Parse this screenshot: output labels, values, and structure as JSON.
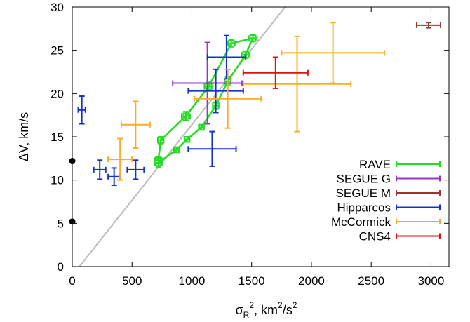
{
  "chart_data": {
    "type": "scatter",
    "xlabel_parts": [
      "σ",
      "R",
      "2",
      ", km",
      "2",
      "/s",
      "2"
    ],
    "ylabel": "ΔV, km/s",
    "xlim": [
      0,
      3150
    ],
    "ylim": [
      0,
      30
    ],
    "xticks": [
      0,
      500,
      1000,
      1500,
      2000,
      2500,
      3000
    ],
    "yticks": [
      0,
      5,
      10,
      15,
      20,
      25,
      30
    ],
    "grid": false,
    "legend_position": "bottom-right",
    "reference_line": {
      "x1": 60,
      "y1": 0,
      "x2": 1780,
      "y2": 30,
      "color": "#bbbbbb"
    },
    "black_points": [
      {
        "x": 0,
        "y": 12.2
      },
      {
        "x": 0,
        "y": 5.2
      }
    ],
    "series": [
      {
        "name": "RAVE",
        "color": "#22dd22",
        "connected": true,
        "lines": [
          [
            [
              720,
              12.0
            ],
            [
              870,
              13.5
            ],
            [
              960,
              14.7
            ],
            [
              1080,
              16.1
            ],
            [
              1200,
              18.6
            ],
            [
              1300,
              21.4
            ],
            [
              1450,
              24.5
            ],
            [
              1510,
              26.4
            ],
            [
              1330,
              25.8
            ],
            [
              1140,
              20.8
            ],
            [
              950,
              17.4
            ],
            [
              740,
              14.6
            ],
            [
              720,
              12.3
            ]
          ]
        ],
        "points": [
          {
            "x": 720,
            "y": 12.0,
            "xerr": 30,
            "yerr": 0.5
          },
          {
            "x": 870,
            "y": 13.5,
            "xerr": 20,
            "yerr": 0.3
          },
          {
            "x": 960,
            "y": 14.7,
            "xerr": 20,
            "yerr": 0.3
          },
          {
            "x": 1080,
            "y": 16.1,
            "xerr": 20,
            "yerr": 0.3
          },
          {
            "x": 1200,
            "y": 18.6,
            "xerr": 25,
            "yerr": 0.4
          },
          {
            "x": 1300,
            "y": 21.4,
            "xerr": 25,
            "yerr": 0.5
          },
          {
            "x": 1450,
            "y": 24.5,
            "xerr": 35,
            "yerr": 0.4
          },
          {
            "x": 1510,
            "y": 26.4,
            "xerr": 35,
            "yerr": 0.4
          },
          {
            "x": 1330,
            "y": 25.8,
            "xerr": 30,
            "yerr": 0.4
          },
          {
            "x": 1140,
            "y": 20.8,
            "xerr": 35,
            "yerr": 0.5
          },
          {
            "x": 950,
            "y": 17.4,
            "xerr": 35,
            "yerr": 0.5
          },
          {
            "x": 740,
            "y": 14.6,
            "xerr": 25,
            "yerr": 0.4
          },
          {
            "x": 720,
            "y": 12.3,
            "xerr": 30,
            "yerr": 0.4
          }
        ]
      },
      {
        "name": "SEGUE G",
        "color": "#9933cc",
        "connected": false,
        "points": [
          {
            "x": 1130,
            "y": 21.2,
            "xerr": 290,
            "yerr": 4.7
          }
        ]
      },
      {
        "name": "SEGUE M",
        "color": "#993333",
        "connected": false,
        "points": [
          {
            "x": 2980,
            "y": 27.9,
            "xerr": 100,
            "yerr": 0.3
          }
        ]
      },
      {
        "name": "Hipparcos",
        "color": "#1133cc",
        "connected": false,
        "points": [
          {
            "x": 80,
            "y": 18.1,
            "xerr": 30,
            "yerr": 1.6
          },
          {
            "x": 230,
            "y": 11.2,
            "xerr": 50,
            "yerr": 1.1
          },
          {
            "x": 350,
            "y": 10.4,
            "xerr": 50,
            "yerr": 1.0
          },
          {
            "x": 530,
            "y": 11.2,
            "xerr": 70,
            "yerr": 1.1
          },
          {
            "x": 1170,
            "y": 13.6,
            "xerr": 200,
            "yerr": 2.0
          },
          {
            "x": 1200,
            "y": 20.3,
            "xerr": 230,
            "yerr": 2.5
          },
          {
            "x": 1290,
            "y": 24.2,
            "xerr": 160,
            "yerr": 2.5
          }
        ]
      },
      {
        "name": "McCormick",
        "color": "#ffaa22",
        "connected": false,
        "points": [
          {
            "x": 400,
            "y": 12.4,
            "xerr": 100,
            "yerr": 2.4
          },
          {
            "x": 530,
            "y": 16.4,
            "xerr": 120,
            "yerr": 2.7
          },
          {
            "x": 1300,
            "y": 19.4,
            "xerr": 280,
            "yerr": 3.4
          },
          {
            "x": 1880,
            "y": 21.1,
            "xerr": 450,
            "yerr": 5.5
          },
          {
            "x": 2180,
            "y": 24.7,
            "xerr": 430,
            "yerr": 3.5
          }
        ]
      },
      {
        "name": "CNS4",
        "color": "#dd1111",
        "connected": false,
        "points": [
          {
            "x": 1700,
            "y": 22.4,
            "xerr": 270,
            "yerr": 1.8
          }
        ]
      }
    ]
  }
}
